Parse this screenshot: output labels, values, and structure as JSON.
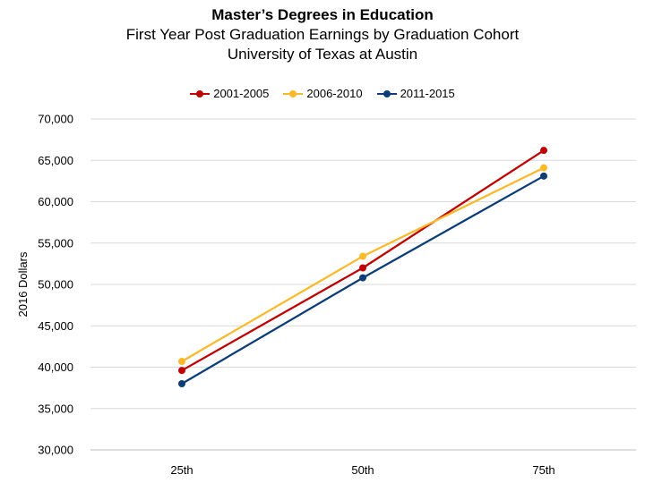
{
  "titles": {
    "main": "Master’s Degrees in Education",
    "sub1": "First Year Post Graduation Earnings by Graduation Cohort",
    "sub2": "University of Texas at Austin"
  },
  "chart_data": {
    "type": "line",
    "title": "Master’s Degrees in Education",
    "subtitle": "First Year Post Graduation Earnings by Graduation Cohort — University of Texas at Austin",
    "xlabel": "",
    "ylabel": "2016 Dollars",
    "categories": [
      "25th",
      "50th",
      "75th"
    ],
    "ylim": [
      30000,
      70000
    ],
    "yticks": [
      30000,
      35000,
      40000,
      45000,
      50000,
      55000,
      60000,
      65000,
      70000
    ],
    "ytick_labels": [
      "30,000",
      "35,000",
      "40,000",
      "45,000",
      "50,000",
      "55,000",
      "60,000",
      "65,000",
      "70,000"
    ],
    "grid": true,
    "legend_position": "top",
    "series": [
      {
        "name": "2001-2005",
        "color": "#C00000",
        "values": [
          39600,
          52000,
          66200
        ]
      },
      {
        "name": "2006-2010",
        "color": "#FBB829",
        "values": [
          40700,
          53400,
          64100
        ]
      },
      {
        "name": "2011-2015",
        "color": "#0B3D78",
        "values": [
          38000,
          50800,
          63100
        ]
      }
    ]
  }
}
